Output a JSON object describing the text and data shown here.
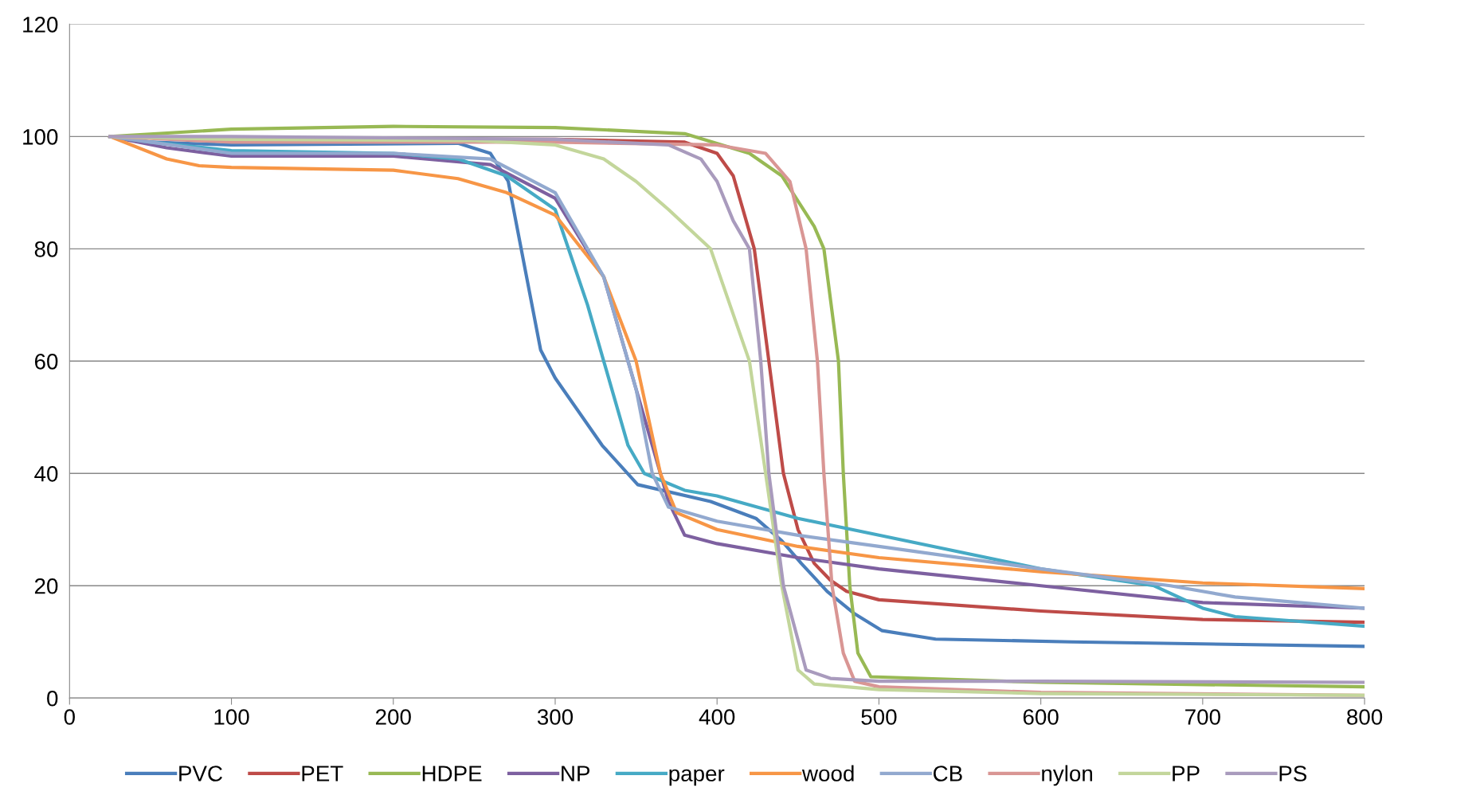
{
  "chart_data": {
    "type": "line",
    "xlim": [
      0,
      800
    ],
    "ylim": [
      0,
      120
    ],
    "xticks": [
      0,
      100,
      200,
      300,
      400,
      500,
      600,
      700,
      800
    ],
    "yticks": [
      0,
      20,
      40,
      60,
      80,
      100,
      120
    ],
    "grid": "y",
    "legend": "bottom",
    "marker": "none",
    "line_style": "solid",
    "series": [
      {
        "name": "PVC",
        "color": "#4a7ebb",
        "x": [
          25,
          50,
          100,
          240,
          260,
          271,
          279,
          291,
          300,
          329,
          351,
          396,
          424,
          440,
          452,
          468,
          485,
          502,
          535,
          619,
          800
        ],
        "values": [
          100,
          99,
          98.5,
          98.8,
          97,
          92,
          80,
          62,
          57,
          45,
          38,
          35,
          32,
          28,
          24,
          19,
          15,
          12,
          10.5,
          10,
          9.2
        ]
      },
      {
        "name": "PET",
        "color": "#be4b48",
        "x": [
          25,
          100,
          200,
          300,
          380,
          400,
          410,
          423,
          432,
          441,
          450,
          460,
          470,
          480,
          500,
          600,
          700,
          800
        ],
        "values": [
          100,
          99.5,
          99.5,
          99.5,
          99,
          97,
          93,
          80,
          60,
          40,
          30,
          24,
          21,
          19,
          17.5,
          15.5,
          14,
          13.5
        ]
      },
      {
        "name": "HDPE",
        "color": "#98b954",
        "x": [
          25,
          100,
          200,
          300,
          380,
          420,
          440,
          460,
          466,
          475,
          478,
          482,
          487,
          495,
          600,
          800
        ],
        "values": [
          100,
          101.3,
          101.8,
          101.6,
          100.5,
          97,
          93,
          84,
          80,
          60,
          40,
          20,
          8,
          3.8,
          2.8,
          2
        ]
      },
      {
        "name": "NP",
        "color": "#7d60a0",
        "x": [
          25,
          60,
          100,
          200,
          260,
          300,
          330,
          350,
          360,
          370,
          380,
          400,
          450,
          500,
          600,
          700,
          800
        ],
        "values": [
          100,
          98,
          96.5,
          96.5,
          95,
          89,
          75,
          55,
          45,
          35,
          29,
          27.5,
          25,
          23,
          20,
          17,
          16
        ]
      },
      {
        "name": "paper",
        "color": "#46aac5",
        "x": [
          25,
          50,
          100,
          200,
          240,
          270,
          300,
          320,
          330,
          345,
          355,
          380,
          400,
          450,
          500,
          600,
          670,
          700,
          720,
          800
        ],
        "values": [
          100,
          99,
          97.5,
          97,
          96,
          93,
          87,
          70,
          60,
          45,
          40,
          37,
          36,
          32,
          29,
          23,
          20,
          16,
          14.5,
          12.8
        ]
      },
      {
        "name": "wood",
        "color": "#f79646",
        "x": [
          25,
          60,
          80,
          100,
          200,
          240,
          270,
          300,
          330,
          350,
          365,
          375,
          400,
          450,
          500,
          600,
          700,
          800
        ],
        "values": [
          100,
          96,
          94.8,
          94.5,
          94,
          92.5,
          90,
          86,
          75,
          60,
          40,
          33,
          30,
          27,
          25,
          22.5,
          20.5,
          19.5
        ]
      },
      {
        "name": "CB",
        "color": "#92a9cf",
        "x": [
          25,
          100,
          200,
          260,
          300,
          330,
          350,
          360,
          370,
          400,
          450,
          500,
          600,
          680,
          720,
          800
        ],
        "values": [
          100,
          97,
          97,
          96,
          90,
          75,
          55,
          40,
          34,
          31.5,
          29,
          27,
          23,
          20,
          18,
          16
        ]
      },
      {
        "name": "nylon",
        "color": "#d99694",
        "x": [
          25,
          100,
          300,
          400,
          430,
          445,
          455,
          462,
          466,
          471,
          478,
          485,
          500,
          600,
          800
        ],
        "values": [
          100,
          99,
          99,
          98.5,
          97,
          92,
          80,
          60,
          40,
          20,
          8,
          3,
          2,
          1,
          0.5
        ]
      },
      {
        "name": "PP",
        "color": "#c3d69b",
        "x": [
          25,
          100,
          250,
          300,
          330,
          350,
          370,
          396,
          420,
          430,
          440,
          450,
          460,
          500,
          600,
          800
        ],
        "values": [
          100,
          99.5,
          99.3,
          98.5,
          96,
          92,
          87,
          80,
          60,
          40,
          20,
          5,
          2.5,
          1.5,
          0.8,
          0.5
        ]
      },
      {
        "name": "PS",
        "color": "#a99bbd",
        "x": [
          25,
          100,
          300,
          370,
          390,
          400,
          410,
          420,
          427,
          432,
          441,
          455,
          470,
          500,
          600,
          800
        ],
        "values": [
          100,
          100,
          99.5,
          98.5,
          96,
          92,
          85,
          80,
          60,
          40,
          20,
          5,
          3.5,
          3,
          3,
          2.8
        ]
      }
    ]
  }
}
